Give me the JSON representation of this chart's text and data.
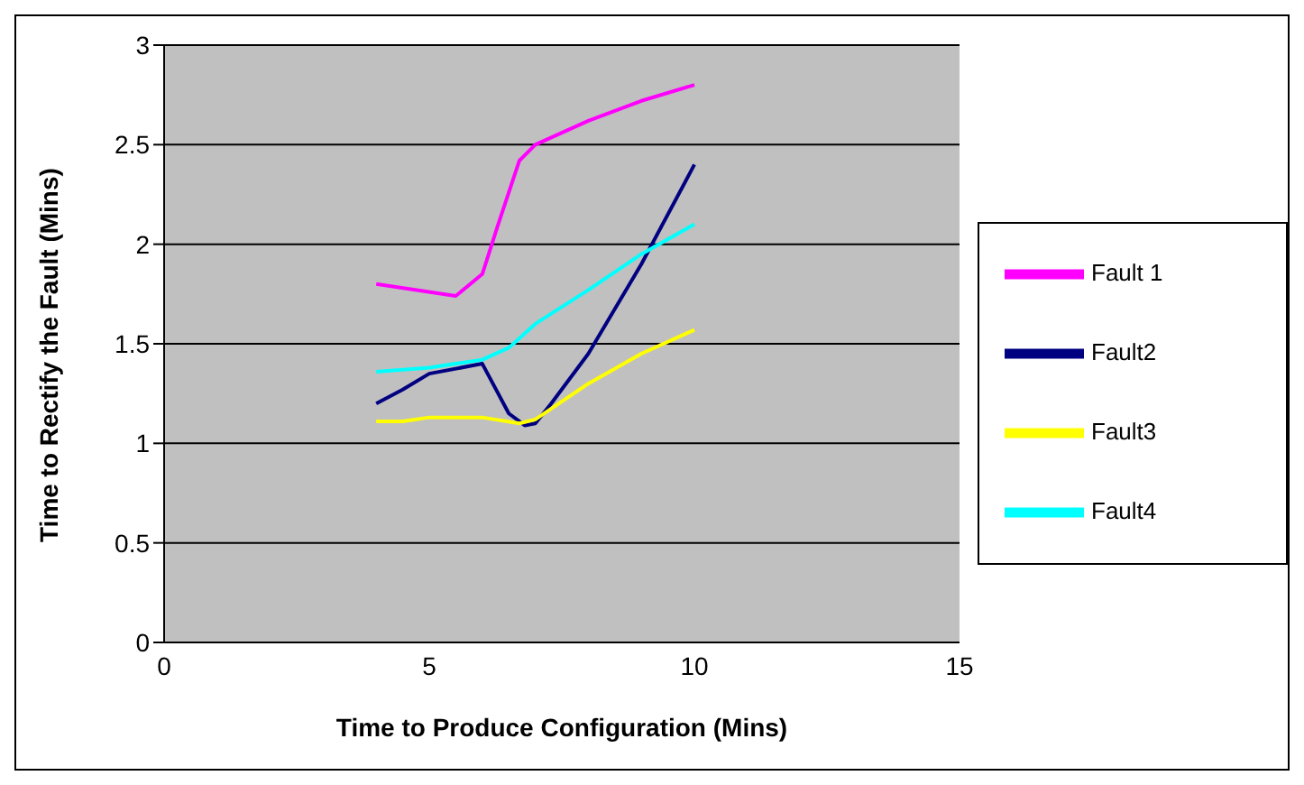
{
  "chart_data": {
    "type": "line",
    "xlabel": "Time to Produce Configuration (Mins)",
    "ylabel": "Time to Rectify the Fault (Mins)",
    "xlim": [
      0,
      15
    ],
    "xticks": [
      0,
      5,
      10,
      15
    ],
    "ylim": [
      0,
      3
    ],
    "yticks": [
      0,
      0.5,
      1,
      1.5,
      2,
      2.5,
      3
    ],
    "grid": "y",
    "legend": "right",
    "marker": "none",
    "series": [
      {
        "name": "Fault 1",
        "color": "#ff00ff",
        "x": [
          4,
          5.5,
          6,
          6.3,
          6.7,
          7,
          8,
          9,
          10
        ],
        "values": [
          1.8,
          1.74,
          1.85,
          2.1,
          2.42,
          2.5,
          2.62,
          2.72,
          2.8
        ]
      },
      {
        "name": "Fault2",
        "color": "#000080",
        "x": [
          4,
          4.5,
          5,
          6,
          6.2,
          6.5,
          6.8,
          7,
          7.3,
          8,
          9,
          10
        ],
        "values": [
          1.2,
          1.27,
          1.35,
          1.4,
          1.3,
          1.15,
          1.09,
          1.1,
          1.2,
          1.45,
          1.9,
          2.4
        ]
      },
      {
        "name": "Fault3",
        "color": "#ffff00",
        "x": [
          4,
          4.5,
          5,
          6,
          6.7,
          7,
          8,
          9,
          10
        ],
        "values": [
          1.11,
          1.11,
          1.13,
          1.13,
          1.1,
          1.12,
          1.3,
          1.45,
          1.57
        ]
      },
      {
        "name": "Fault4",
        "color": "#00ffff",
        "x": [
          4,
          5,
          6,
          6.5,
          7,
          8,
          9,
          10
        ],
        "values": [
          1.36,
          1.38,
          1.42,
          1.48,
          1.6,
          1.77,
          1.95,
          2.1
        ]
      }
    ]
  }
}
